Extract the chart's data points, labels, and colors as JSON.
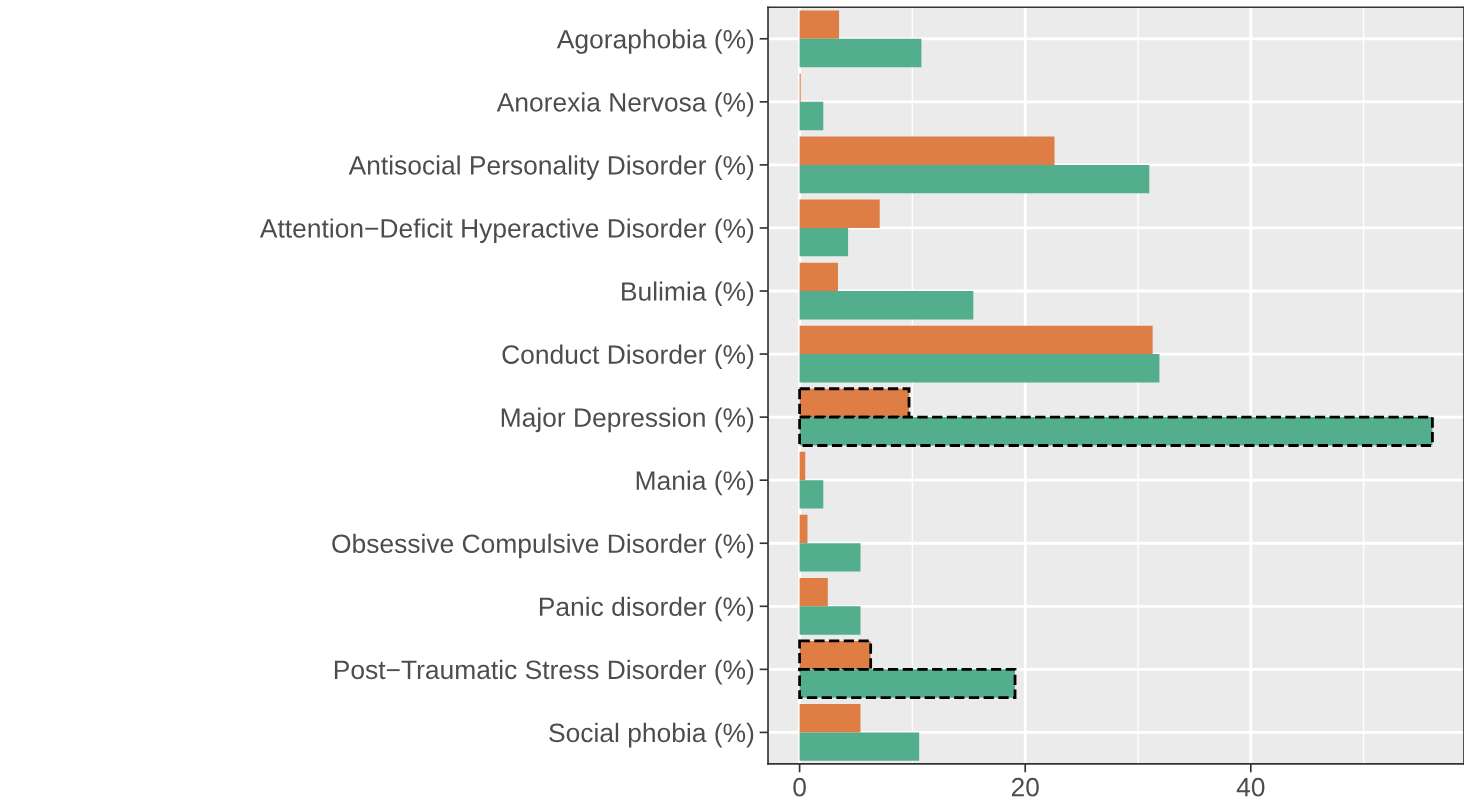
{
  "chart_data": {
    "type": "bar",
    "orientation": "horizontal",
    "categories": [
      "Agoraphobia (%)",
      "Anorexia Nervosa (%)",
      "Antisocial Personality Disorder (%)",
      "Attention−Deficit Hyperactive Disorder (%)",
      "Bulimia (%)",
      "Conduct Disorder (%)",
      "Major Depression (%)",
      "Mania (%)",
      "Obsessive Compulsive Disorder (%)",
      "Panic disorder (%)",
      "Post−Traumatic Stress Disorder (%)",
      "Social phobia (%)"
    ],
    "series": [
      {
        "color": "#de7e44",
        "values": [
          3.5,
          0.1,
          22.6,
          7.1,
          3.4,
          31.3,
          9.7,
          0.5,
          0.7,
          2.5,
          6.3,
          5.4
        ],
        "line_style": [
          "none",
          "none",
          "none",
          "none",
          "none",
          "none",
          "dashed",
          "none",
          "none",
          "none",
          "dashed",
          "none"
        ]
      },
      {
        "color": "#52ae8c",
        "values": [
          10.8,
          2.1,
          31.0,
          4.3,
          15.4,
          31.9,
          56.1,
          2.1,
          5.4,
          5.4,
          19.1,
          10.6
        ],
        "line_style": [
          "none",
          "none",
          "none",
          "none",
          "none",
          "none",
          "dashed",
          "none",
          "none",
          "none",
          "dashed",
          "none"
        ]
      }
    ],
    "xlim": [
      -2.8,
      58.9
    ],
    "xticks": [
      0,
      {
        "value": 10,
        "label": null
      },
      20,
      {
        "value": 30,
        "label": null
      },
      40,
      {
        "value": 50,
        "label": null
      }
    ],
    "grid": true,
    "legend": false
  }
}
